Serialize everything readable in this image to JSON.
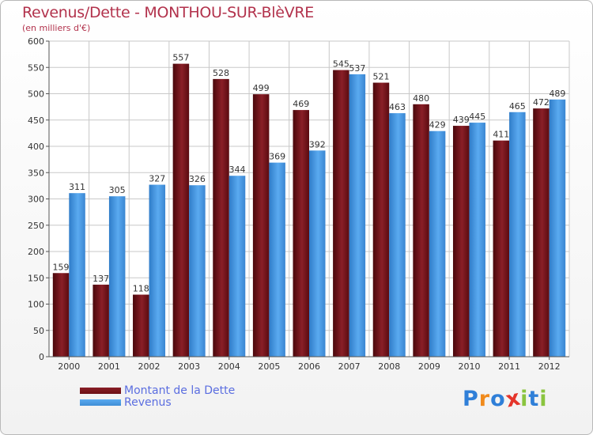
{
  "header": {
    "title": "Revenus/Dette - MONTHOU-SUR-BlèVRE",
    "subtitle": "(en milliers d'€)"
  },
  "logo": {
    "text": "Proxiti",
    "letters": [
      "P",
      "r",
      "o",
      "x",
      "i",
      "t",
      "i"
    ],
    "letter_colors": [
      "#2f7fd8",
      "#f08a1c",
      "#2f7fd8",
      "#e5352b",
      "#8ac43f",
      "#2f7fd8",
      "#8ac43f"
    ]
  },
  "colors": {
    "dette": "#6b0f14",
    "revenus": "#3f8ed6",
    "grid": "#c8c8c8",
    "text": "#333333",
    "title": "#b2324c",
    "legend_text": "#5b6ee0"
  },
  "chart_data": {
    "type": "bar",
    "title": "Revenus/Dette - MONTHOU-SUR-BlèVRE",
    "subtitle": "(en milliers d'€)",
    "xlabel": "",
    "ylabel": "",
    "ylim": [
      0,
      600
    ],
    "yticks": [
      0,
      50,
      100,
      150,
      200,
      250,
      300,
      350,
      400,
      450,
      500,
      550,
      600
    ],
    "grid": true,
    "legend_position": "bottom-left",
    "categories": [
      "2000",
      "2001",
      "2002",
      "2003",
      "2004",
      "2005",
      "2006",
      "2007",
      "2008",
      "2009",
      "2010",
      "2011",
      "2012"
    ],
    "series": [
      {
        "name": "Montant de la Dette",
        "values": [
          159,
          137,
          118,
          557,
          528,
          499,
          469,
          545,
          521,
          480,
          439,
          411,
          472
        ]
      },
      {
        "name": "Revenus",
        "values": [
          311,
          305,
          327,
          326,
          344,
          369,
          392,
          537,
          463,
          429,
          445,
          465,
          489
        ]
      }
    ]
  }
}
